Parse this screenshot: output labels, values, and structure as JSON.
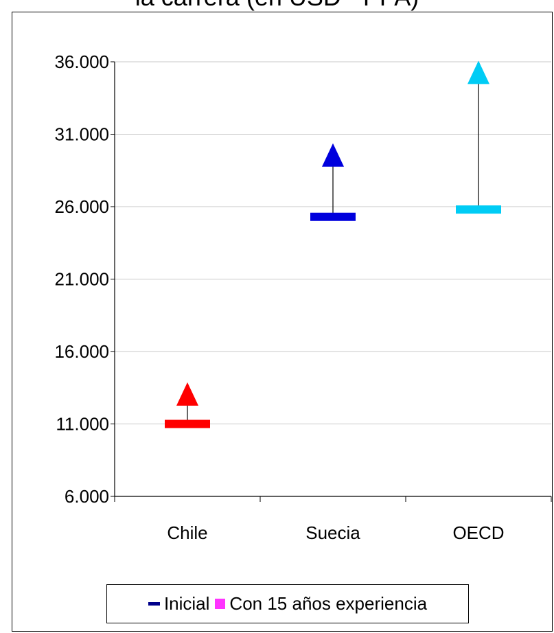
{
  "chart_data": {
    "type": "range-marker",
    "title": "la carrera (en USD - PPA)",
    "xlabel": "",
    "ylabel": "",
    "categories": [
      "Chile",
      "Suecia",
      "OECD"
    ],
    "series": [
      {
        "name": "Inicial",
        "values": [
          11000,
          25300,
          25800
        ],
        "marker": "dash"
      },
      {
        "name": "Con 15 años experiencia",
        "values": [
          12800,
          29300,
          35000
        ],
        "marker": "triangle"
      }
    ],
    "point_colors": [
      "#ff0000",
      "#0000dd",
      "#00ccf5"
    ],
    "legend_colors": {
      "Inicial": "#00008b",
      "Con 15 años experiencia": "#ff33ff"
    },
    "ylim": [
      6000,
      36000
    ],
    "yticks": [
      6000,
      11000,
      16000,
      21000,
      26000,
      31000,
      36000
    ],
    "ytick_labels": [
      "6.000",
      "11.000",
      "16.000",
      "21.000",
      "26.000",
      "31.000",
      "36.000"
    ],
    "grid": true,
    "legend_position": "bottom"
  },
  "legend": {
    "initial_label": "Inicial",
    "experience_label": "Con 15 años experiencia"
  }
}
